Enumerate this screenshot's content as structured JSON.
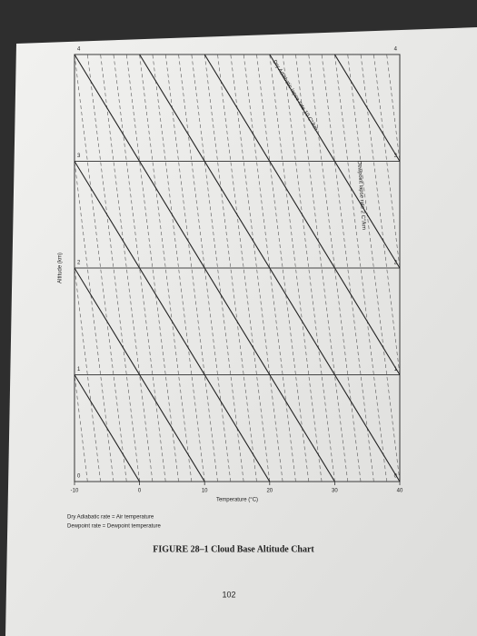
{
  "chart_data": {
    "type": "line",
    "title": "FIGURE 28–1 Cloud Base Altitude Chart",
    "x_label": "Temperature (°C)",
    "y_label": "Altitude (km)",
    "annotations": [
      "Dry Adiabatic lapse rate 10 C°/km",
      "Dewpoint lapse rate 2 C°/km"
    ],
    "notes": [
      "Dry Adiabatic rate = Air temperature",
      "Dewpoint rate = Dewpoint temperature"
    ],
    "page_number": "102",
    "xlim": [
      -10,
      40
    ],
    "ylim": [
      0,
      4
    ],
    "xticks": [
      -10,
      0,
      10,
      20,
      30,
      40
    ],
    "yticks": [
      0,
      1,
      2,
      3,
      4
    ],
    "grid": true,
    "dry_color": "#222222",
    "dew_color": "#555555",
    "dry_adiabatic_lines": [
      {
        "x": [
          0,
          -40
        ],
        "y": [
          0,
          4
        ]
      },
      {
        "x": [
          10,
          -30
        ],
        "y": [
          0,
          4
        ]
      },
      {
        "x": [
          20,
          -20
        ],
        "y": [
          0,
          4
        ]
      },
      {
        "x": [
          30,
          -10
        ],
        "y": [
          0,
          4
        ]
      },
      {
        "x": [
          40,
          0
        ],
        "y": [
          0,
          4
        ]
      },
      {
        "x": [
          50,
          10
        ],
        "y": [
          0,
          4
        ]
      },
      {
        "x": [
          60,
          20
        ],
        "y": [
          0,
          4
        ]
      },
      {
        "x": [
          70,
          30
        ],
        "y": [
          0,
          4
        ]
      },
      {
        "x": [
          80,
          40
        ],
        "y": [
          0,
          4
        ]
      }
    ],
    "dewpoint_lines": [
      {
        "x": [
          -8,
          -16
        ],
        "y": [
          0,
          4
        ]
      },
      {
        "x": [
          -6,
          -14
        ],
        "y": [
          0,
          4
        ]
      },
      {
        "x": [
          -4,
          -12
        ],
        "y": [
          0,
          4
        ]
      },
      {
        "x": [
          -2,
          -10
        ],
        "y": [
          0,
          4
        ]
      },
      {
        "x": [
          0,
          -8
        ],
        "y": [
          0,
          4
        ]
      },
      {
        "x": [
          2,
          -6
        ],
        "y": [
          0,
          4
        ]
      },
      {
        "x": [
          4,
          -4
        ],
        "y": [
          0,
          4
        ]
      },
      {
        "x": [
          6,
          -2
        ],
        "y": [
          0,
          4
        ]
      },
      {
        "x": [
          8,
          0
        ],
        "y": [
          0,
          4
        ]
      },
      {
        "x": [
          10,
          2
        ],
        "y": [
          0,
          4
        ]
      },
      {
        "x": [
          12,
          4
        ],
        "y": [
          0,
          4
        ]
      },
      {
        "x": [
          14,
          6
        ],
        "y": [
          0,
          4
        ]
      },
      {
        "x": [
          16,
          8
        ],
        "y": [
          0,
          4
        ]
      },
      {
        "x": [
          18,
          10
        ],
        "y": [
          0,
          4
        ]
      },
      {
        "x": [
          20,
          12
        ],
        "y": [
          0,
          4
        ]
      },
      {
        "x": [
          22,
          14
        ],
        "y": [
          0,
          4
        ]
      },
      {
        "x": [
          24,
          16
        ],
        "y": [
          0,
          4
        ]
      },
      {
        "x": [
          26,
          18
        ],
        "y": [
          0,
          4
        ]
      },
      {
        "x": [
          28,
          20
        ],
        "y": [
          0,
          4
        ]
      },
      {
        "x": [
          30,
          22
        ],
        "y": [
          0,
          4
        ]
      },
      {
        "x": [
          32,
          24
        ],
        "y": [
          0,
          4
        ]
      },
      {
        "x": [
          34,
          26
        ],
        "y": [
          0,
          4
        ]
      },
      {
        "x": [
          36,
          28
        ],
        "y": [
          0,
          4
        ]
      },
      {
        "x": [
          38,
          30
        ],
        "y": [
          0,
          4
        ]
      },
      {
        "x": [
          40,
          32
        ],
        "y": [
          0,
          4
        ]
      },
      {
        "x": [
          42,
          34
        ],
        "y": [
          0,
          4
        ]
      },
      {
        "x": [
          44,
          36
        ],
        "y": [
          0,
          4
        ]
      },
      {
        "x": [
          46,
          38
        ],
        "y": [
          0,
          4
        ]
      },
      {
        "x": [
          48,
          40
        ],
        "y": [
          0,
          4
        ]
      }
    ]
  }
}
